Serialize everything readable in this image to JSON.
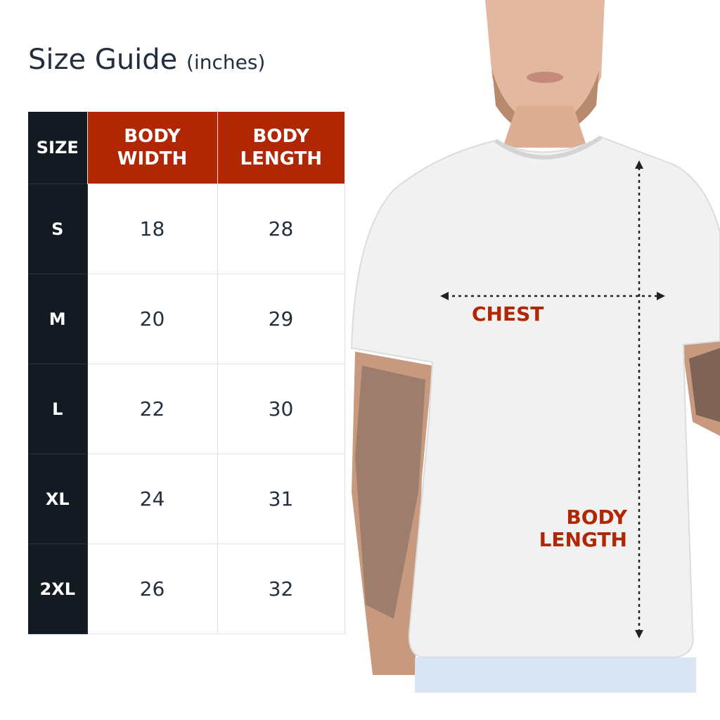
{
  "title": {
    "main": "Size Guide",
    "unit": "(inches)"
  },
  "table": {
    "headers": [
      "SIZE",
      "BODY\nWIDTH",
      "BODY\nLENGTH"
    ],
    "header_lines": [
      [
        "SIZE"
      ],
      [
        "BODY",
        "WIDTH"
      ],
      [
        "BODY",
        "LENGTH"
      ]
    ],
    "rows": [
      {
        "size": "S",
        "width": "18",
        "length": "28"
      },
      {
        "size": "M",
        "width": "20",
        "length": "29"
      },
      {
        "size": "L",
        "width": "22",
        "length": "30"
      },
      {
        "size": "XL",
        "width": "24",
        "length": "31"
      },
      {
        "size": "2XL",
        "width": "26",
        "length": "32"
      }
    ]
  },
  "diagram": {
    "chest_label": "CHEST",
    "length_label_1": "BODY",
    "length_label_2": "LENGTH"
  },
  "colors": {
    "accent": "#b12704",
    "dark": "#131a22",
    "text": "#232f3e"
  }
}
